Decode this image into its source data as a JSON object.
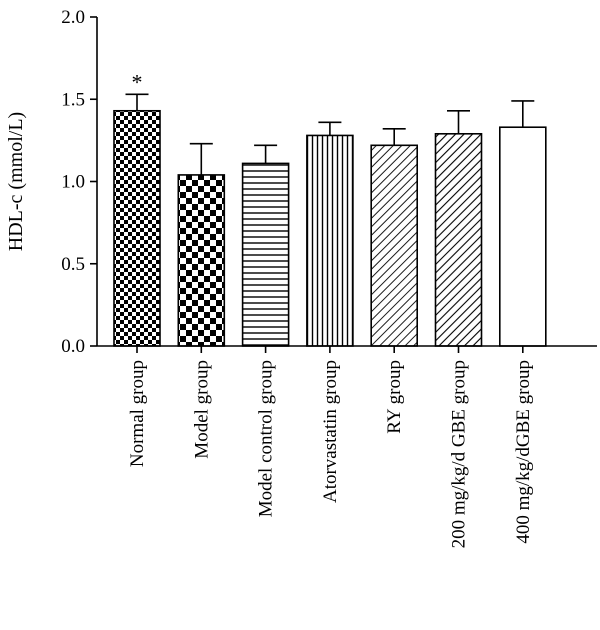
{
  "chart_data": {
    "type": "bar",
    "categories": [
      "Normal group",
      "Model group",
      "Model control group",
      "Atorvastatin group",
      "RY group",
      "200 mg/kg/d GBE group",
      "400 mg/kg/dGBE group"
    ],
    "values": [
      1.43,
      1.04,
      1.11,
      1.28,
      1.22,
      1.29,
      1.33
    ],
    "errors": [
      0.1,
      0.19,
      0.11,
      0.08,
      0.1,
      0.14,
      0.16
    ],
    "patterns": [
      "fine-checker",
      "coarse-checker",
      "horizontal-lines",
      "vertical-lines",
      "fine-diagonal",
      "diagonal",
      "none"
    ],
    "annotations": [
      "*",
      "",
      "",
      "",
      "",
      "",
      ""
    ],
    "ylabel": "HDL-c (mmol/L)",
    "xlabel": "",
    "ylim": [
      0,
      2.0
    ],
    "yticks": [
      "0.0",
      "0.5",
      "1.0",
      "1.5",
      "2.0"
    ],
    "grid": false,
    "colors": {
      "stroke": "#000000",
      "fill": "#ffffff"
    }
  }
}
